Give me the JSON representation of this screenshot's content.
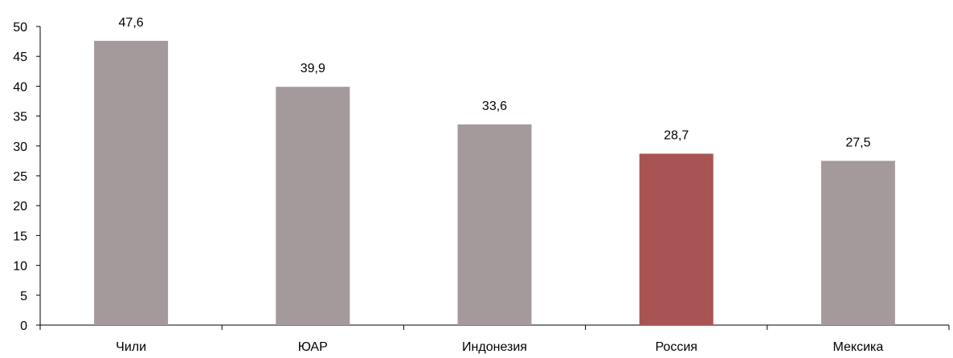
{
  "chart_data": {
    "type": "bar",
    "title": "",
    "xlabel": "",
    "ylabel": "",
    "categories": [
      "Чили",
      "ЮАР",
      "Индонезия",
      "Россия",
      "Мексика"
    ],
    "values": [
      47.6,
      39.9,
      33.6,
      28.7,
      27.5
    ],
    "value_labels": [
      "47,6",
      "39,9",
      "33,6",
      "28,7",
      "27,5"
    ],
    "highlight_index": 3,
    "ylim": [
      0,
      50
    ],
    "yticks": [
      0,
      5,
      10,
      15,
      20,
      25,
      30,
      35,
      40,
      45,
      50
    ],
    "grid": false,
    "colors": {
      "bar": "#a59a9b",
      "highlight": "#a85454",
      "axis": "#000000"
    }
  }
}
